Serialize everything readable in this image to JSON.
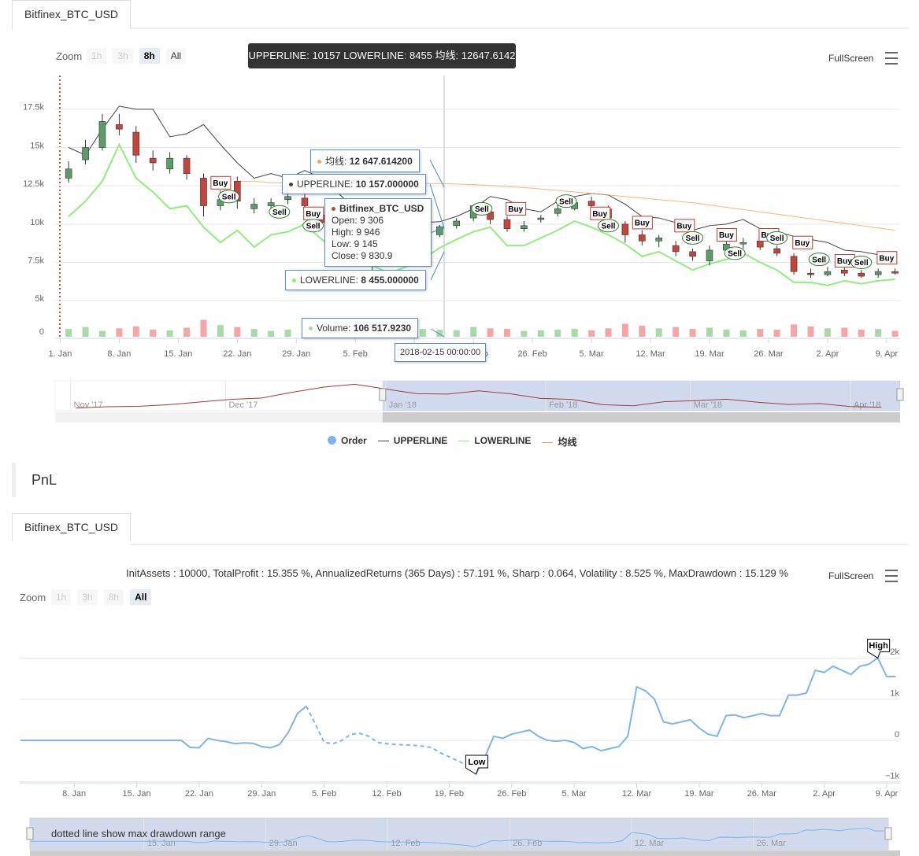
{
  "section_title": "PnL",
  "chart_data": [
    {
      "type": "candlestick",
      "tab": "Bitfinex_BTC_USD",
      "name": "Bitfinex_BTC_USD",
      "zoom": {
        "label": "Zoom",
        "buttons": [
          "1h",
          "3h",
          "8h",
          "All"
        ],
        "disabled": [
          "1h",
          "3h"
        ],
        "selected": "8h"
      },
      "fullscreen": "FullScreen",
      "tooltip_header": "UPPERLINE: 10157 LOWERLINE: 8455 均线: 12647.6142",
      "tooltip": {
        "ma": {
          "label": "均线:",
          "value": "12 647.614200"
        },
        "upper": {
          "label": "UPPERLINE:",
          "value": "10 157.000000"
        },
        "lower": {
          "label": "LOWERLINE:",
          "value": "8 455.000000"
        },
        "volume": {
          "label": "Volume:",
          "value": "106 517.9230"
        },
        "lines": [
          "Open: 9 306",
          "High: 9 946",
          "Low: 9 145",
          "Close: 9 830.9"
        ],
        "date": "2018-02-15 00:00:00"
      },
      "x": [
        1,
        3,
        5,
        7,
        9,
        11,
        13,
        15,
        17,
        19,
        21,
        23,
        25,
        27,
        29,
        31,
        33,
        35,
        37,
        39,
        41,
        43,
        45,
        47,
        49,
        51,
        53,
        55,
        57,
        59,
        61,
        63,
        65,
        67,
        69,
        71,
        73,
        75,
        77,
        79,
        81,
        83,
        85,
        87,
        89,
        91,
        93,
        95,
        97,
        99
      ],
      "open": [
        13000,
        14200,
        15000,
        16500,
        16000,
        14300,
        13600,
        14300,
        13000,
        11200,
        12800,
        11000,
        11200,
        11600,
        11700,
        10600,
        9800,
        9100,
        8300,
        7700,
        8300,
        8600,
        9306,
        9900,
        10400,
        10800,
        10300,
        9700,
        10300,
        10700,
        11000,
        11500,
        11000,
        10000,
        9300,
        8900,
        8600,
        8200,
        7600,
        8300,
        8700,
        8900,
        8400,
        7900,
        6800,
        6700,
        7000,
        6800,
        6700,
        6900
      ],
      "high": [
        14100,
        15500,
        17200,
        17200,
        16400,
        14800,
        14700,
        14500,
        13300,
        12200,
        13100,
        11700,
        11700,
        12200,
        12000,
        10900,
        10200,
        9400,
        8600,
        8600,
        8900,
        9300,
        9946,
        10400,
        11300,
        11000,
        10500,
        10200,
        10600,
        11300,
        11600,
        11800,
        11200,
        10200,
        9600,
        9300,
        8900,
        8400,
        8600,
        9000,
        9100,
        9200,
        8600,
        8100,
        7100,
        7200,
        7200,
        7000,
        7100,
        7100
      ],
      "low": [
        12700,
        13900,
        14800,
        15800,
        14000,
        13500,
        13300,
        12900,
        10500,
        10900,
        11000,
        10700,
        10900,
        11300,
        11000,
        9800,
        8900,
        7800,
        6900,
        7500,
        8100,
        8500,
        9145,
        9700,
        10200,
        10000,
        9500,
        9500,
        10100,
        10500,
        10900,
        10800,
        10000,
        8800,
        8600,
        8500,
        7900,
        7600,
        7300,
        8100,
        8400,
        8300,
        7900,
        6700,
        6500,
        6600,
        6600,
        6500,
        6500,
        6700
      ],
      "close": [
        13600,
        15000,
        16700,
        16200,
        14500,
        14000,
        14300,
        13300,
        11200,
        11600,
        11500,
        11300,
        11400,
        11800,
        11200,
        10100,
        9200,
        8300,
        7600,
        8200,
        8600,
        9100,
        9830.9,
        10200,
        11200,
        10300,
        9700,
        9900,
        10400,
        11000,
        11400,
        11200,
        10400,
        9300,
        8900,
        9100,
        8200,
        7900,
        8300,
        8700,
        8800,
        8500,
        8100,
        6900,
        6700,
        6900,
        6800,
        6600,
        6900,
        6800
      ],
      "colors": {
        "up": "#5b9c69",
        "down": "#c3453c",
        "wick": "#333333"
      },
      "series": [
        {
          "name": "UPPERLINE",
          "color": "#434348",
          "values": [
            15000,
            14500,
            16200,
            17700,
            17500,
            17500,
            15700,
            15900,
            16500,
            15200,
            14000,
            13000,
            13300,
            13000,
            13500,
            13000,
            12000,
            11000,
            10500,
            10000,
            10100,
            10100,
            10157,
            10500,
            11000,
            11800,
            11600,
            11000,
            10800,
            11500,
            11800,
            12000,
            11900,
            11300,
            10500,
            10400,
            10100,
            9600,
            9900,
            10000,
            10300,
            9700,
            9500,
            9200,
            9000,
            8800,
            8300,
            8200,
            8000,
            7800
          ]
        },
        {
          "name": "LOWERLINE",
          "color": "#90ed7d",
          "values": [
            10500,
            11500,
            12800,
            15200,
            13000,
            12100,
            11000,
            11200,
            9800,
            8800,
            9600,
            8500,
            9300,
            9500,
            10000,
            9000,
            8200,
            7800,
            7300,
            6800,
            7200,
            7700,
            8455,
            9000,
            9500,
            9800,
            8600,
            8600,
            9100,
            9600,
            10200,
            9800,
            9300,
            8700,
            7900,
            8200,
            7600,
            7000,
            7400,
            7700,
            8100,
            7500,
            7000,
            6200,
            6200,
            6000,
            6300,
            6100,
            6300,
            6400
          ]
        },
        {
          "name": "均线",
          "color": "#f7a35c",
          "values": [
            null,
            null,
            null,
            null,
            null,
            null,
            null,
            null,
            null,
            null,
            12800,
            12800,
            12700,
            12700,
            12700,
            12680,
            12670,
            12660,
            12655,
            12650,
            12650,
            12648,
            12647.6142,
            12620,
            12580,
            12520,
            12450,
            12380,
            12300,
            12200,
            12100,
            12000,
            11900,
            11800,
            11700,
            11600,
            11500,
            11400,
            11250,
            11100,
            10950,
            10800,
            10650,
            10500,
            10350,
            10200,
            10050,
            9900,
            9750,
            9600
          ]
        }
      ],
      "volume": {
        "values": [
          120000,
          150000,
          90000,
          130000,
          160000,
          110000,
          100000,
          140000,
          260000,
          180000,
          150000,
          120000,
          90000,
          110000,
          100000,
          130000,
          170000,
          160000,
          240000,
          190000,
          140000,
          120000,
          106517.923,
          100000,
          150000,
          130000,
          120000,
          90000,
          100000,
          110000,
          120000,
          100000,
          130000,
          200000,
          170000,
          130000,
          150000,
          120000,
          140000,
          110000,
          100000,
          120000,
          110000,
          190000,
          160000,
          130000,
          140000,
          110000,
          120000,
          90000
        ],
        "colors": {
          "up": "#a9d8a9",
          "down": "#f4a6a6"
        },
        "ylim": [
          0,
          400000
        ],
        "yticks": [
          0
        ]
      },
      "orders": {
        "name": "Order",
        "color": "#7cb5ec",
        "buy_color": "#c0392b",
        "sell_color": "#2e7d32",
        "x": [
          19,
          20,
          26,
          30,
          30,
          50,
          54,
          60,
          64,
          65,
          69,
          74,
          75,
          79,
          80,
          84,
          85,
          88,
          90,
          93,
          95,
          98
        ],
        "y": [
          12700,
          11800,
          10800,
          10700,
          9900,
          11000,
          11000,
          11500,
          10700,
          9900,
          10100,
          9900,
          9100,
          9300,
          8100,
          9300,
          9100,
          8800,
          7700,
          7600,
          7500,
          7800
        ],
        "labels": [
          "Buy",
          "Sell",
          "Sell",
          "Buy",
          "Sell",
          "Sell",
          "Buy",
          "Sell",
          "Buy",
          "Sell",
          "Buy",
          "Buy",
          "Sell",
          "Buy",
          "Sell",
          "Buy",
          "Sell",
          "Buy",
          "Sell",
          "Buy",
          "Sell",
          "Buy"
        ]
      },
      "xlim": [
        -0.6,
        99.6
      ],
      "xticks": [
        {
          "value": 0,
          "label": "1. Jan"
        },
        {
          "value": 7,
          "label": "8. Jan"
        },
        {
          "value": 14,
          "label": "15. Jan"
        },
        {
          "value": 21,
          "label": "22. Jan"
        },
        {
          "value": 28,
          "label": "29. Jan"
        },
        {
          "value": 35,
          "label": "5. Feb"
        },
        {
          "value": 42,
          "label": "12. Feb"
        },
        {
          "value": 49,
          "label": "19. Feb"
        },
        {
          "value": 56,
          "label": "26. Feb"
        },
        {
          "value": 63,
          "label": "5. Mar"
        },
        {
          "value": 70,
          "label": "12. Mar"
        },
        {
          "value": 77,
          "label": "19. Mar"
        },
        {
          "value": 84,
          "label": "26. Mar"
        },
        {
          "value": 91,
          "label": "2. Apr"
        },
        {
          "value": 98,
          "label": "9. Apr"
        }
      ],
      "ylim": [
        4600,
        19700
      ],
      "yticks": [
        {
          "value": 5000,
          "label": "5k"
        },
        {
          "value": 7500,
          "label": "7.5k"
        },
        {
          "value": 10000,
          "label": "10k"
        },
        {
          "value": 12500,
          "label": "12.5k"
        },
        {
          "value": 15000,
          "label": "15k"
        },
        {
          "value": 17500,
          "label": "17.5k"
        }
      ],
      "grid": true,
      "navigator": {
        "color": "#a33a3a",
        "xlim": [
          -64,
          99.6
        ],
        "ylim": [
          5000,
          20000
        ],
        "x": [
          -60,
          -54,
          -48,
          -42,
          -36,
          -30,
          -24,
          -18,
          -12,
          -6,
          0,
          6,
          12,
          18,
          24,
          30,
          36,
          42,
          48,
          54,
          60,
          66,
          72,
          78,
          84,
          90,
          96
        ],
        "values": [
          6400,
          7100,
          7300,
          8200,
          9600,
          11000,
          11700,
          14800,
          17500,
          19000,
          16500,
          14000,
          13800,
          15500,
          14000,
          11500,
          11000,
          8200,
          7600,
          9800,
          10300,
          11100,
          9500,
          8300,
          8800,
          7200,
          6800
        ],
        "xticks": [
          {
            "value": -61,
            "label": "Nov '17"
          },
          {
            "value": -31,
            "label": "Dec '17"
          },
          {
            "value": 0,
            "label": "Jan '18"
          },
          {
            "value": 31,
            "label": "Feb '18"
          },
          {
            "value": 59,
            "label": "Mar '18"
          },
          {
            "value": 90,
            "label": "Apr '18"
          }
        ]
      }
    },
    {
      "type": "line",
      "tab": "Bitfinex_BTC_USD",
      "subtitle": "InitAssets : 10000, TotalProfit : 15.355 %, AnnualizedReturns (365 Days) : 57.191 %, Sharp : 0.064, Volatility : 8.525 %, MaxDrawdown : 15.129 %",
      "zoom": {
        "label": "Zoom",
        "buttons": [
          "1h",
          "3h",
          "8h",
          "All"
        ],
        "disabled": [
          "1h",
          "3h",
          "8h"
        ],
        "selected": "All"
      },
      "fullscreen": "FullScreen",
      "annotation": "dotted line show max drawdown range",
      "x": [
        1,
        2,
        3,
        4,
        5,
        6,
        7,
        8,
        9,
        10,
        11,
        12,
        13,
        14,
        15,
        16,
        17,
        18,
        19,
        20,
        21,
        22,
        23,
        24,
        25,
        26,
        27,
        28,
        29,
        30,
        31,
        32,
        33,
        34,
        35,
        36,
        37,
        38,
        39,
        40,
        41,
        42,
        43,
        44,
        45,
        46,
        47,
        48,
        49,
        50,
        51,
        52,
        53,
        54,
        55,
        56,
        57,
        58,
        59,
        60,
        61,
        62,
        63,
        64,
        65,
        66,
        67,
        68,
        69,
        70,
        71,
        72,
        73,
        74,
        75,
        76,
        77,
        78,
        79,
        80,
        81,
        82,
        83,
        84,
        85,
        86,
        87,
        88,
        89,
        90,
        91,
        92,
        93,
        94,
        95,
        96,
        97,
        98,
        99
      ],
      "series": [
        {
          "color": "#7cb5ec",
          "values": [
            0,
            0,
            0,
            0,
            0,
            0,
            0,
            0,
            0,
            0,
            0,
            0,
            0,
            0,
            0,
            0,
            0,
            0,
            0,
            -170,
            -180,
            50,
            0,
            -30,
            -80,
            -60,
            -70,
            -150,
            -180,
            -100,
            200,
            650,
            830,
            400,
            -50,
            -80,
            0,
            150,
            170,
            100,
            -50,
            -80,
            -100,
            -110,
            -120,
            -140,
            -170,
            -300,
            -400,
            -500,
            -600,
            -820,
            -400,
            100,
            50,
            150,
            200,
            250,
            100,
            0,
            -20,
            0,
            -50,
            -200,
            -150,
            -250,
            -200,
            -150,
            100,
            1300,
            1200,
            1000,
            450,
            400,
            450,
            500,
            300,
            150,
            100,
            600,
            620,
            550,
            600,
            650,
            600,
            600,
            1100,
            1100,
            1150,
            1700,
            1650,
            1800,
            1700,
            1600,
            1800,
            1850,
            2000,
            1550,
            1550
          ]
        }
      ],
      "drawdown": [
        33,
        52
      ],
      "flags": {
        "x": [
          97,
          52
        ],
        "labels": [
          "High",
          "Low"
        ]
      },
      "xlim": [
        0.9,
        99.5
      ],
      "xticks": [
        {
          "value": 7,
          "label": "8. Jan"
        },
        {
          "value": 14,
          "label": "15. Jan"
        },
        {
          "value": 21,
          "label": "22. Jan"
        },
        {
          "value": 28,
          "label": "29. Jan"
        },
        {
          "value": 35,
          "label": "5. Feb"
        },
        {
          "value": 42,
          "label": "12. Feb"
        },
        {
          "value": 49,
          "label": "19. Feb"
        },
        {
          "value": 56,
          "label": "26. Feb"
        },
        {
          "value": 63,
          "label": "5. Mar"
        },
        {
          "value": 70,
          "label": "12. Mar"
        },
        {
          "value": 77,
          "label": "19. Mar"
        },
        {
          "value": 84,
          "label": "26. Mar"
        },
        {
          "value": 91,
          "label": "2. Apr"
        },
        {
          "value": 98,
          "label": "9. Apr"
        }
      ],
      "ylim": [
        -1030,
        2980
      ],
      "yticks": [
        {
          "value": -1000,
          "label": "−1k"
        },
        0,
        {
          "value": 1000,
          "label": "1k"
        },
        {
          "value": 2000,
          "label": "2k"
        }
      ],
      "grid": true,
      "navigator": {
        "xticks": [
          {
            "value": 14,
            "label": "15. Jan"
          },
          {
            "value": 28,
            "label": "29. Jan"
          },
          {
            "value": 42,
            "label": "12. Feb"
          },
          {
            "value": 56,
            "label": "26. Feb"
          },
          {
            "value": 70,
            "label": "12. Mar"
          },
          {
            "value": 84,
            "label": "26. Mar"
          }
        ]
      }
    }
  ]
}
